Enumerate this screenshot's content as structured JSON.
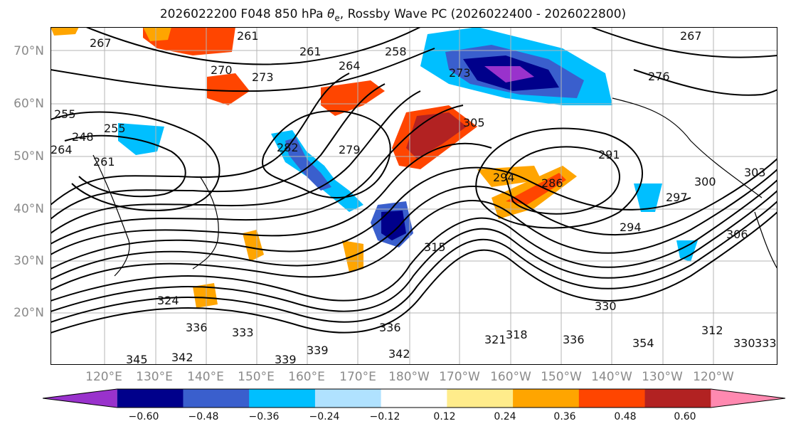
{
  "title_prefix": "2026022200 F048 850 hPa ",
  "title_theta": "θ",
  "title_theta_sub": "e",
  "title_suffix": ", Rossby Wave PC (2026022400 - 2026022800)",
  "lat_labels": [
    "70°N",
    "60°N",
    "50°N",
    "40°N",
    "30°N",
    "20°N"
  ],
  "lon_labels": [
    "120°E",
    "130°E",
    "140°E",
    "150°E",
    "160°E",
    "170°E",
    "180°W",
    "170°W",
    "160°W",
    "150°W",
    "140°W",
    "130°W",
    "120°W"
  ],
  "colorbar": {
    "ticks": [
      "−0.60",
      "−0.48",
      "−0.36",
      "−0.24",
      "−0.12",
      "0.12",
      "0.24",
      "0.36",
      "0.48",
      "0.60"
    ],
    "colors": [
      "#9932cc",
      "#00008b",
      "#3a5fcd",
      "#00bfff",
      "#b0e2ff",
      "#ffffff",
      "#ffec8b",
      "#ffa500",
      "#ff4500",
      "#b22222",
      "#ff89b0"
    ]
  },
  "contour_labels": [
    "267",
    "261",
    "261",
    "270",
    "273",
    "264",
    "258",
    "267",
    "255",
    "248",
    "255",
    "261",
    "264",
    "282",
    "279",
    "305",
    "294",
    "286",
    "291",
    "273",
    "276",
    "300",
    "303",
    "306",
    "294",
    "297",
    "315",
    "324",
    "321",
    "318",
    "330",
    "336",
    "339",
    "336",
    "342",
    "345",
    "342",
    "339",
    "333",
    "336",
    "312",
    "330",
    "333",
    "354"
  ]
}
